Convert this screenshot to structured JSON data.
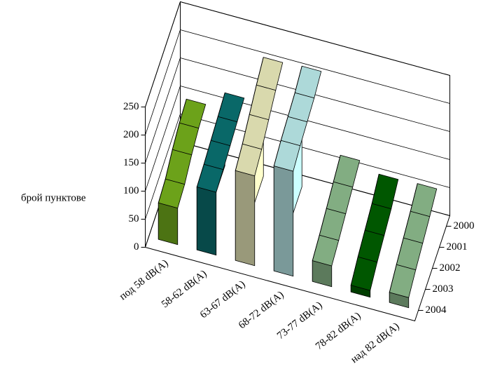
{
  "chart_data": {
    "type": "area3d",
    "y_label": "брой пунктове",
    "categories": [
      "2000",
      "2001",
      "2002",
      "2003",
      "2004"
    ],
    "series": [
      {
        "name": "под 58 dB(A)",
        "color": "#7fbf1f",
        "values": [
          100,
          95,
          85,
          70,
          65
        ]
      },
      {
        "name": "58-62 dB(A)",
        "color": "#0b7a7a",
        "values": [
          130,
          125,
          120,
          115,
          112
        ]
      },
      {
        "name": "63-67 dB(A)",
        "color": "#ffffcc",
        "values": [
          212,
          200,
          185,
          170,
          160
        ]
      },
      {
        "name": "68-72 dB(A)",
        "color": "#ccffff",
        "values": [
          215,
          205,
          200,
          195,
          187
        ]
      },
      {
        "name": "73-77 dB(A)",
        "color": "#99cc99",
        "values": [
          75,
          65,
          55,
          45,
          37
        ]
      },
      {
        "name": "78-82 dB(A)",
        "color": "#006600",
        "values": [
          60,
          45,
          35,
          25,
          12
        ]
      },
      {
        "name": "над 82 dB(A)",
        "color": "#99cc99",
        "values": [
          62,
          50,
          40,
          30,
          18
        ]
      }
    ],
    "ylim": [
      0,
      250
    ],
    "yticks": [
      0,
      50,
      100,
      150,
      200,
      250
    ],
    "grid": true
  }
}
